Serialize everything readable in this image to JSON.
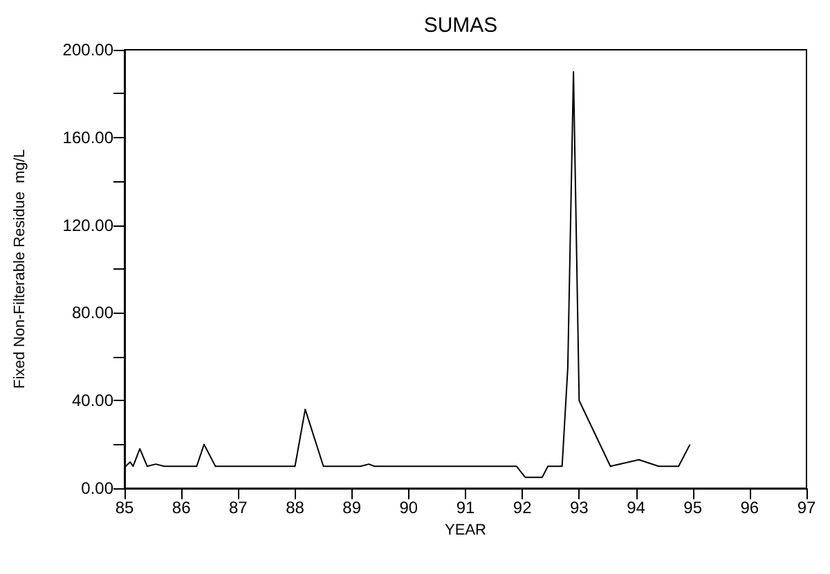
{
  "chart_data": {
    "type": "line",
    "title": "SUMAS",
    "xlabel": "YEAR",
    "ylabel": "Fixed Non-Filterable Residue  mg/L",
    "x": [
      85.02,
      85.1,
      85.15,
      85.27,
      85.4,
      85.55,
      85.7,
      86.27,
      86.4,
      86.6,
      88.0,
      88.18,
      88.5,
      89.15,
      89.3,
      89.4,
      91.9,
      92.05,
      92.35,
      92.45,
      92.7,
      92.8,
      92.9,
      93.0,
      93.55,
      94.05,
      94.4,
      94.75,
      94.95
    ],
    "series": [
      {
        "color": "#000000",
        "values": [
          10,
          12,
          10,
          18,
          10,
          11,
          10,
          10,
          20,
          10,
          10,
          36,
          10,
          10,
          11,
          10,
          10,
          5,
          5,
          10,
          10,
          55,
          190,
          40,
          10,
          13,
          10,
          10,
          20
        ]
      }
    ],
    "xlim": [
      85,
      97
    ],
    "xticks": [
      85,
      86,
      87,
      88,
      89,
      90,
      91,
      92,
      93,
      94,
      95,
      96,
      97
    ],
    "ylim": [
      0,
      200
    ],
    "yticks": [
      {
        "value": 0,
        "label": "0.00"
      },
      {
        "value": 20,
        "label": null
      },
      {
        "value": 40,
        "label": "40.00"
      },
      {
        "value": 60,
        "label": null
      },
      {
        "value": 80,
        "label": "80.00"
      },
      {
        "value": 100,
        "label": null
      },
      {
        "value": 120,
        "label": "120.00"
      },
      {
        "value": 140,
        "label": null
      },
      {
        "value": 160,
        "label": "160.00"
      },
      {
        "value": 180,
        "label": null
      },
      {
        "value": 200,
        "label": "200.00"
      }
    ],
    "grid": false,
    "marker": "none",
    "line_style": "solid"
  }
}
